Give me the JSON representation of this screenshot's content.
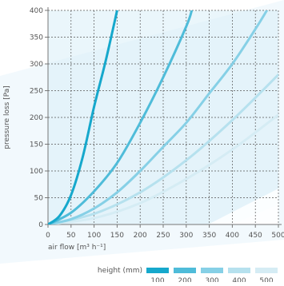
{
  "chart_data": {
    "type": "line",
    "xlabel": "air flow [m³ h⁻¹]",
    "ylabel": "pressure loss [Pa]",
    "xlim": [
      0,
      500
    ],
    "ylim": [
      0,
      400
    ],
    "x_ticks": [
      0,
      50,
      100,
      150,
      200,
      250,
      300,
      350,
      400,
      450,
      500
    ],
    "y_ticks": [
      0,
      50,
      100,
      150,
      200,
      250,
      300,
      350,
      400
    ],
    "grid": true,
    "legend": {
      "title": "height (mm)",
      "placement": "bottom-right",
      "entries": [
        "100",
        "200",
        "300",
        "400",
        "500"
      ]
    },
    "series": [
      {
        "name": "100",
        "color": "#16a8cc",
        "x": [
          0,
          25,
          50,
          75,
          100,
          125,
          150
        ],
        "y": [
          0,
          16,
          55,
          125,
          220,
          305,
          400
        ]
      },
      {
        "name": "200",
        "color": "#4fbcd9",
        "x": [
          0,
          50,
          100,
          150,
          200,
          250,
          300,
          312
        ],
        "y": [
          0,
          22,
          62,
          115,
          190,
          275,
          370,
          400
        ]
      },
      {
        "name": "300",
        "color": "#86d0e6",
        "x": [
          0,
          50,
          100,
          150,
          200,
          250,
          300,
          350,
          400,
          450,
          475
        ],
        "y": [
          0,
          10,
          30,
          60,
          100,
          145,
          190,
          245,
          300,
          365,
          400
        ]
      },
      {
        "name": "400",
        "color": "#b6e1ee",
        "x": [
          0,
          100,
          200,
          300,
          400,
          500
        ],
        "y": [
          0,
          20,
          60,
          120,
          195,
          280
        ]
      },
      {
        "name": "500",
        "color": "#d5ecf4",
        "x": [
          0,
          100,
          200,
          300,
          400,
          500
        ],
        "y": [
          0,
          12,
          40,
          85,
          140,
          205
        ]
      }
    ]
  },
  "colors": {
    "background_band": "#d9eef8",
    "grid": "#555555",
    "axis": "#777777",
    "text": "#555555"
  }
}
